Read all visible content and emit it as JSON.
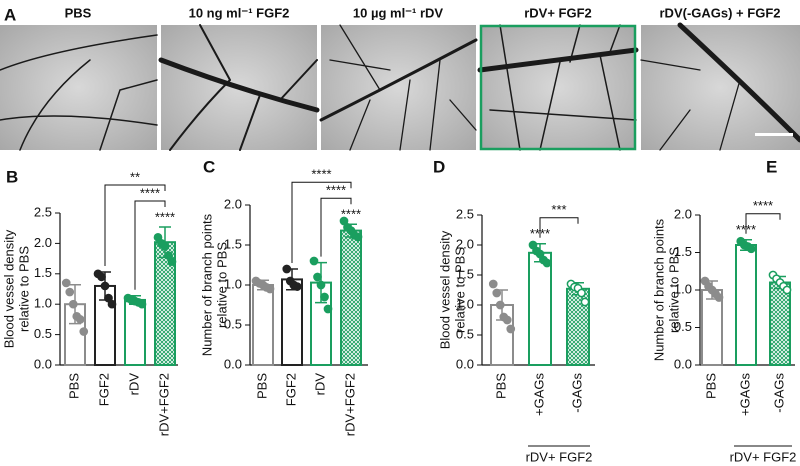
{
  "panel_a": {
    "letter": "A",
    "images": [
      "PBS",
      "10 ng ml⁻¹ FGF2",
      "10 µg ml⁻¹ rDV",
      "rDV+ FGF2",
      "rDV(-GAGs) + FGF2"
    ]
  },
  "chart_data": [
    {
      "type": "bar",
      "panel": "B",
      "ylabel": [
        "Blood vessel density",
        "relative to PBS"
      ],
      "categories": [
        "PBS",
        "FGF2",
        "rDV",
        "rDV+FGF2"
      ],
      "values": [
        1.0,
        1.3,
        1.07,
        2.02
      ],
      "errors": [
        0.32,
        0.23,
        0.07,
        0.25
      ],
      "points": [
        [
          1.35,
          1.2,
          1.0,
          0.8,
          0.75,
          0.55
        ],
        [
          1.5,
          1.45,
          1.3,
          1.1,
          1.0
        ],
        [
          1.1,
          1.07,
          1.05,
          1.03,
          1.0
        ],
        [
          2.1,
          2.0,
          1.95,
          1.8,
          1.7
        ]
      ],
      "colors": [
        "#8c8c8c",
        "#222222",
        "#1a9e5f",
        "#1a9e5f"
      ],
      "hatched": [
        false,
        false,
        false,
        true
      ],
      "open_points": [
        false,
        false,
        false,
        false
      ],
      "ylim": [
        0,
        2.5
      ],
      "yticks": [
        {
          "value": 0,
          "label": "0.0"
        },
        0.5,
        {
          "value": 1,
          "label": "1.0"
        },
        1.5,
        {
          "value": 2,
          "label": "2.0"
        },
        2.5
      ],
      "brackets": [
        {
          "from": 1,
          "to": 3,
          "label": "**"
        },
        {
          "from": 2,
          "to": 3,
          "label": "****"
        }
      ],
      "stars": [
        null,
        null,
        null,
        "****"
      ]
    },
    {
      "type": "bar",
      "panel": "C",
      "ylabel": [
        "Number of branch points",
        "relative to PBS"
      ],
      "categories": [
        "PBS",
        "FGF2",
        "rDV",
        "rDV+FGF2"
      ],
      "values": [
        1.0,
        1.07,
        1.03,
        1.68
      ],
      "errors": [
        0.06,
        0.13,
        0.25,
        0.08
      ],
      "points": [
        [
          1.05,
          1.02,
          1.0,
          0.97,
          0.95
        ],
        [
          1.2,
          1.05,
          1.0,
          0.98
        ],
        [
          1.3,
          1.1,
          1.0,
          0.85,
          0.7
        ],
        [
          1.8,
          1.72,
          1.68,
          1.62,
          1.6
        ]
      ],
      "colors": [
        "#8c8c8c",
        "#222222",
        "#1a9e5f",
        "#1a9e5f"
      ],
      "hatched": [
        false,
        false,
        false,
        true
      ],
      "open_points": [
        false,
        false,
        false,
        false
      ],
      "ylim": [
        0,
        2
      ],
      "yticks": [
        {
          "value": 0,
          "label": "0.0"
        },
        0.5,
        {
          "value": 1,
          "label": "1.0"
        },
        1.5,
        {
          "value": 2,
          "label": "2.0"
        }
      ],
      "brackets": [
        {
          "from": 1,
          "to": 3,
          "label": "****"
        },
        {
          "from": 2,
          "to": 3,
          "label": "****"
        }
      ],
      "stars": [
        null,
        null,
        null,
        "****"
      ]
    },
    {
      "type": "bar",
      "panel": "D",
      "ylabel": [
        "Blood vessel density",
        "relative to PBS"
      ],
      "group_label": "rDV+ FGF2",
      "categories": [
        "PBS",
        "+GAGs",
        "-GAGs"
      ],
      "values": [
        1.0,
        1.87,
        1.27
      ],
      "errors": [
        0.25,
        0.15,
        0.1
      ],
      "points": [
        [
          1.35,
          1.2,
          1.0,
          0.8,
          0.75,
          0.6
        ],
        [
          2.0,
          1.9,
          1.85,
          1.75,
          1.7
        ],
        [
          1.35,
          1.3,
          1.28,
          1.2,
          1.05
        ]
      ],
      "colors": [
        "#8c8c8c",
        "#1a9e5f",
        "#1a9e5f"
      ],
      "hatched": [
        false,
        false,
        true
      ],
      "open_points": [
        false,
        false,
        true
      ],
      "ylim": [
        0,
        2.5
      ],
      "yticks": [
        {
          "value": 0,
          "label": "0.0"
        },
        0.5,
        {
          "value": 1,
          "label": "1.0"
        },
        1.5,
        {
          "value": 2,
          "label": "2.0"
        },
        2.5
      ],
      "brackets": [
        {
          "from": 1,
          "to": 2,
          "label": "***"
        }
      ],
      "stars": [
        null,
        "****",
        null
      ]
    },
    {
      "type": "bar",
      "panel": "E",
      "ylabel": [
        "Number of branch points",
        "relative to PBS"
      ],
      "group_label": "rDV+ FGF2",
      "categories": [
        "PBS",
        "+GAGs",
        "-GAGs"
      ],
      "values": [
        1.0,
        1.6,
        1.1
      ],
      "errors": [
        0.12,
        0.07,
        0.08
      ],
      "points": [
        [
          1.12,
          1.05,
          1.0,
          0.95,
          0.9
        ],
        [
          1.65,
          1.6,
          1.58,
          1.55
        ],
        [
          1.2,
          1.15,
          1.1,
          1.05,
          1.0
        ]
      ],
      "colors": [
        "#8c8c8c",
        "#1a9e5f",
        "#1a9e5f"
      ],
      "hatched": [
        false,
        false,
        true
      ],
      "open_points": [
        false,
        false,
        true
      ],
      "ylim": [
        0,
        2
      ],
      "yticks": [
        {
          "value": 0,
          "label": "0.0"
        },
        0.5,
        {
          "value": 1,
          "label": "1.0"
        },
        1.5,
        {
          "value": 2,
          "label": "2.0"
        }
      ],
      "brackets": [
        {
          "from": 1,
          "to": 2,
          "label": "****"
        }
      ],
      "stars": [
        null,
        "****",
        null
      ]
    }
  ]
}
